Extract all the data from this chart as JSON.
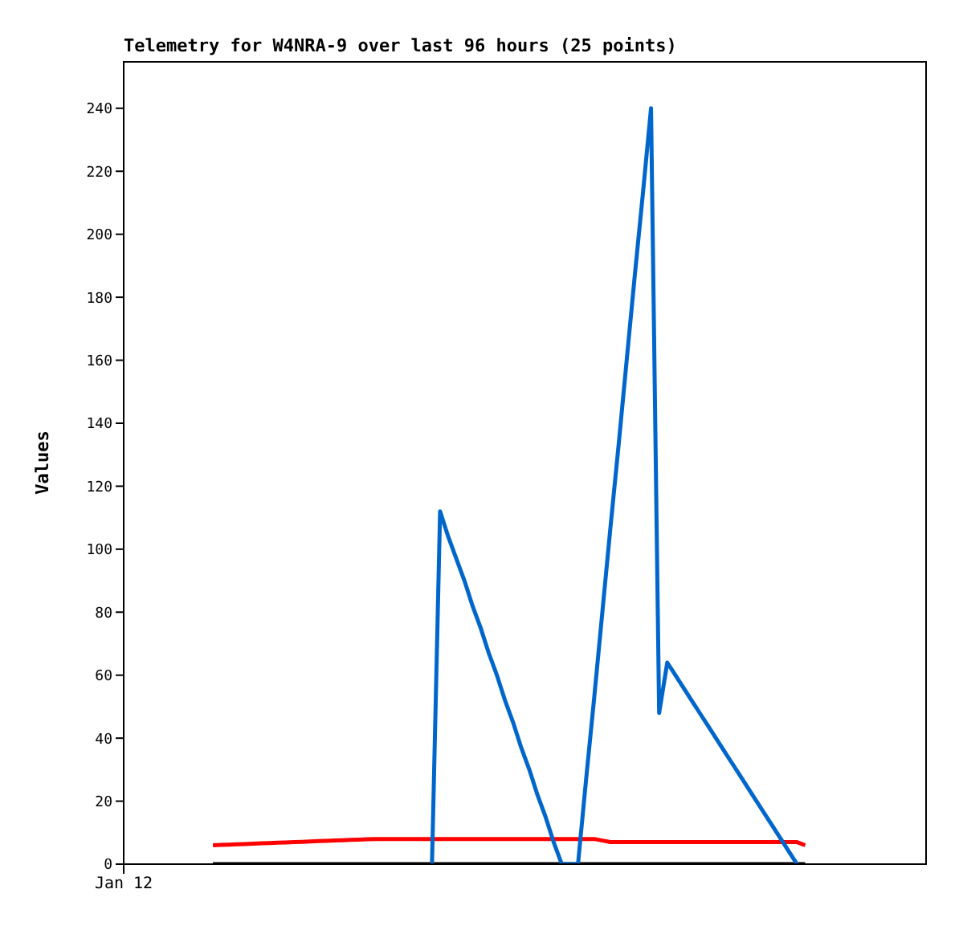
{
  "chart_data": {
    "type": "line",
    "title": "Telemetry for W4NRA-9 over last 96 hours (25 points)",
    "ylabel": "Values",
    "ylim": [
      0,
      255
    ],
    "yticks": [
      0,
      20,
      40,
      60,
      80,
      100,
      120,
      140,
      160,
      180,
      200,
      220,
      240
    ],
    "marker": "none",
    "line_style": "solid",
    "categories": [
      "Jan 12",
      null,
      null,
      null,
      null,
      null,
      null,
      null,
      null,
      null,
      null,
      null,
      null,
      null,
      null,
      null,
      null,
      null,
      null,
      null,
      null,
      null,
      null,
      null,
      null,
      null,
      null,
      null,
      null,
      null,
      null,
      null,
      null,
      null,
      null,
      null,
      null,
      null,
      null,
      null,
      null,
      null,
      null,
      null,
      null,
      null,
      null,
      null,
      null,
      null,
      null,
      null,
      null,
      null,
      null,
      null,
      null,
      null,
      null,
      null,
      null,
      null,
      null,
      null,
      null,
      null,
      null,
      null,
      null,
      null,
      null,
      null,
      null,
      null,
      null,
      null,
      null,
      null,
      null,
      null,
      null,
      null,
      null,
      null,
      null,
      null,
      null,
      null,
      null,
      null,
      null,
      null,
      null,
      null,
      null,
      null,
      null,
      null,
      null,
      null
    ],
    "series": [
      {
        "color": "#ff0000",
        "values": [
          null,
          null,
          null,
          null,
          null,
          null,
          null,
          null,
          null,
          null,
          null,
          6,
          6.1,
          6.2,
          6.3,
          6.4,
          6.5,
          6.6,
          6.7,
          6.8,
          6.9,
          7,
          7.1,
          7.2,
          7.3,
          7.4,
          7.5,
          7.6,
          7.7,
          7.8,
          7.9,
          8,
          8,
          8,
          8,
          8,
          8,
          8,
          8,
          8,
          8,
          8,
          8,
          8,
          8,
          8,
          8,
          8,
          8,
          8,
          8,
          8,
          8,
          8,
          8,
          8,
          8,
          8,
          8,
          7.5,
          7,
          7,
          7,
          7,
          7,
          7,
          7,
          7,
          7,
          7,
          7,
          7,
          7,
          7,
          7,
          7,
          7,
          7,
          7,
          7,
          7,
          7,
          7,
          7,
          6,
          null,
          null,
          null,
          null,
          null,
          null,
          null,
          null,
          null,
          null,
          null,
          null,
          null,
          null,
          null
        ]
      },
      {
        "color": "#000000",
        "values": [
          null,
          null,
          null,
          null,
          null,
          null,
          null,
          null,
          null,
          null,
          null,
          0,
          0,
          0,
          0,
          0,
          0,
          0,
          0,
          0,
          0,
          0,
          0,
          0,
          0,
          0,
          0,
          0,
          0,
          0,
          0,
          0,
          0,
          0,
          0,
          0,
          0,
          0,
          0,
          0,
          0,
          0,
          0,
          0,
          0,
          0,
          0,
          0,
          0,
          0,
          0,
          0,
          0,
          0,
          0,
          0,
          0,
          0,
          0,
          0,
          0,
          0,
          0,
          0,
          0,
          0,
          0,
          0,
          0,
          0,
          0,
          0,
          0,
          0,
          0,
          0,
          0,
          0,
          0,
          0,
          0,
          0,
          0,
          0,
          0,
          null,
          null,
          null,
          null,
          null,
          null,
          null,
          null,
          null,
          null,
          null,
          null,
          null,
          null,
          null
        ]
      },
      {
        "color": "#0066cc",
        "values": [
          null,
          null,
          null,
          null,
          null,
          null,
          null,
          null,
          null,
          null,
          null,
          null,
          null,
          null,
          null,
          null,
          null,
          null,
          null,
          null,
          null,
          null,
          null,
          null,
          null,
          null,
          null,
          null,
          null,
          null,
          null,
          null,
          null,
          null,
          null,
          null,
          null,
          null,
          0,
          112,
          104,
          97,
          90,
          82,
          75,
          67,
          60,
          52,
          45,
          37,
          30,
          22,
          15,
          7,
          0,
          0,
          0,
          27,
          53,
          80,
          107,
          133,
          160,
          187,
          213,
          240,
          48,
          64,
          60,
          56,
          52,
          48,
          44,
          40,
          36,
          32,
          28,
          24,
          20,
          16,
          12,
          8,
          4,
          0,
          null,
          null,
          null,
          null,
          null,
          null,
          null,
          null,
          null,
          null,
          null,
          null,
          null,
          null,
          null,
          null
        ]
      }
    ]
  }
}
